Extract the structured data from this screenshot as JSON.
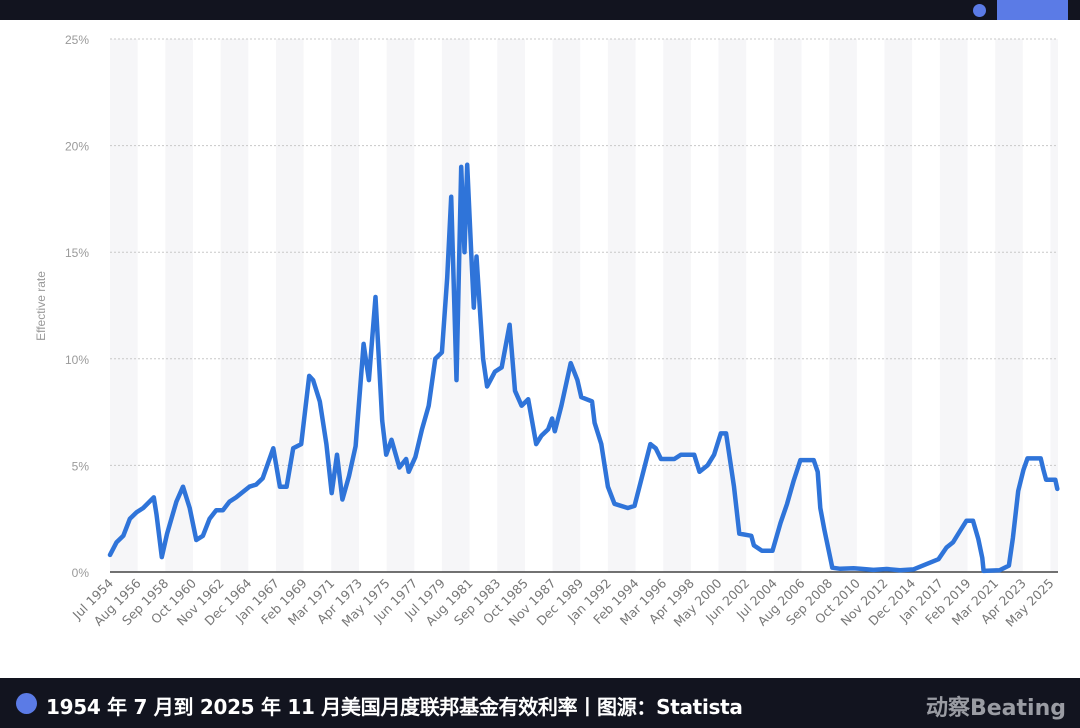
{
  "chart_data": {
    "type": "line",
    "title": "",
    "xlabel": "",
    "ylabel": "Effective rate",
    "ylim": [
      0,
      25
    ],
    "yticks": [
      "0%",
      "5%",
      "10%",
      "15%",
      "20%",
      "25%"
    ],
    "ytick_values": [
      0,
      5,
      10,
      15,
      20,
      25
    ],
    "xlim": [
      "Jul 1954",
      "Nov 2025"
    ],
    "xticks": [
      "Jul 1954",
      "Aug 1956",
      "Sep 1958",
      "Oct 1960",
      "Nov 1962",
      "Dec 1964",
      "Jan 1967",
      "Feb 1969",
      "Mar 1971",
      "Apr 1973",
      "May 1975",
      "Jun 1977",
      "Jul 1979",
      "Aug 1981",
      "Sep 1983",
      "Oct 1985",
      "Nov 1987",
      "Dec 1989",
      "Jan 1992",
      "Feb 1994",
      "Mar 1996",
      "Apr 1998",
      "May 2000",
      "Jun 2002",
      "Jul 2004",
      "Aug 2006",
      "Sep 2008",
      "Oct 2010",
      "Nov 2012",
      "Dec 2014",
      "Jan 2017",
      "Feb 2019",
      "Mar 2021",
      "Apr 2023",
      "May 2025"
    ],
    "grid": true,
    "line_color": "#2f74d9",
    "series": [
      {
        "x": [
          1954.5,
          1955.0,
          1955.5,
          1956.0,
          1956.5,
          1957.0,
          1957.8,
          1958.0,
          1958.4,
          1958.8,
          1959.5,
          1960.0,
          1960.5,
          1961.0,
          1961.5,
          1962.0,
          1962.5,
          1963.0,
          1963.5,
          1964.0,
          1965.0,
          1965.5,
          1966.0,
          1966.8,
          1967.3,
          1967.8,
          1968.3,
          1968.9,
          1969.5,
          1969.8,
          1970.3,
          1970.8,
          1971.2,
          1971.6,
          1972.0,
          1972.5,
          1973.0,
          1973.6,
          1974.0,
          1974.5,
          1975.0,
          1975.3,
          1975.7,
          1976.3,
          1976.8,
          1977.0,
          1977.5,
          1978.0,
          1978.5,
          1979.0,
          1979.5,
          1979.9,
          1980.2,
          1980.6,
          1980.95,
          1981.2,
          1981.4,
          1981.7,
          1981.9,
          1982.1,
          1982.6,
          1982.9,
          1983.5,
          1984.0,
          1984.6,
          1985.0,
          1985.5,
          1986.0,
          1986.6,
          1987.0,
          1987.5,
          1987.8,
          1988.0,
          1988.5,
          1989.2,
          1989.7,
          1990.0,
          1990.8,
          1991.0,
          1991.5,
          1992.0,
          1992.5,
          1993.5,
          1994.0,
          1994.5,
          1995.2,
          1995.6,
          1996.0,
          1997.0,
          1997.5,
          1998.5,
          1998.9,
          1999.5,
          2000.0,
          2000.5,
          2000.9,
          2001.5,
          2001.9,
          2002.8,
          2003.0,
          2003.6,
          2004.4,
          2005.0,
          2005.5,
          2006.0,
          2006.5,
          2007.5,
          2007.8,
          2008.0,
          2008.3,
          2008.9,
          2009.5,
          2010.5,
          2011.0,
          2012.0,
          2013.0,
          2014.0,
          2015.0,
          2015.95,
          2016.9,
          2017.5,
          2018.0,
          2018.5,
          2019.0,
          2019.5,
          2019.9,
          2020.2,
          2020.3,
          2021.5,
          2022.2,
          2022.5,
          2022.9,
          2023.3,
          2023.6,
          2024.6,
          2024.8,
          2025.0,
          2025.7,
          2025.85
        ],
        "y": [
          0.8,
          1.4,
          1.7,
          2.5,
          2.8,
          3.0,
          3.5,
          2.7,
          0.7,
          1.8,
          3.3,
          4.0,
          3.0,
          1.5,
          1.7,
          2.5,
          2.9,
          2.9,
          3.3,
          3.5,
          4.0,
          4.1,
          4.4,
          5.8,
          4.0,
          4.0,
          5.8,
          6.0,
          9.2,
          9.0,
          8.0,
          6.0,
          3.7,
          5.5,
          3.4,
          4.5,
          5.9,
          10.7,
          9.0,
          12.9,
          7.1,
          5.5,
          6.2,
          4.9,
          5.3,
          4.7,
          5.4,
          6.7,
          7.8,
          10.0,
          10.3,
          13.8,
          17.6,
          9.0,
          19.0,
          15.0,
          19.1,
          15.1,
          12.4,
          14.8,
          10.0,
          8.7,
          9.4,
          9.6,
          11.6,
          8.5,
          7.8,
          8.1,
          6.0,
          6.4,
          6.7,
          7.2,
          6.6,
          7.8,
          9.8,
          9.0,
          8.2,
          8.0,
          7.0,
          6.0,
          4.0,
          3.2,
          3.0,
          3.1,
          4.3,
          6.0,
          5.8,
          5.3,
          5.3,
          5.5,
          5.5,
          4.7,
          5.0,
          5.5,
          6.5,
          6.5,
          4.0,
          1.8,
          1.7,
          1.25,
          1.0,
          1.0,
          2.3,
          3.2,
          4.3,
          5.25,
          5.25,
          4.7,
          3.0,
          2.0,
          0.2,
          0.15,
          0.18,
          0.15,
          0.1,
          0.14,
          0.08,
          0.12,
          0.36,
          0.6,
          1.15,
          1.4,
          1.9,
          2.4,
          2.4,
          1.55,
          0.65,
          0.05,
          0.08,
          0.3,
          1.6,
          3.8,
          4.8,
          5.33,
          5.33,
          4.8,
          4.33,
          4.33,
          3.9
        ]
      }
    ]
  },
  "footer": {
    "caption": "1954 年 7 月到 2025 年 11 月美国月度联邦基金有效利率丨图源：Statista",
    "logo": "动察Beating"
  },
  "colors": {
    "bar": "#12141f",
    "accent": "#5b7be6",
    "line": "#2f74d9"
  }
}
